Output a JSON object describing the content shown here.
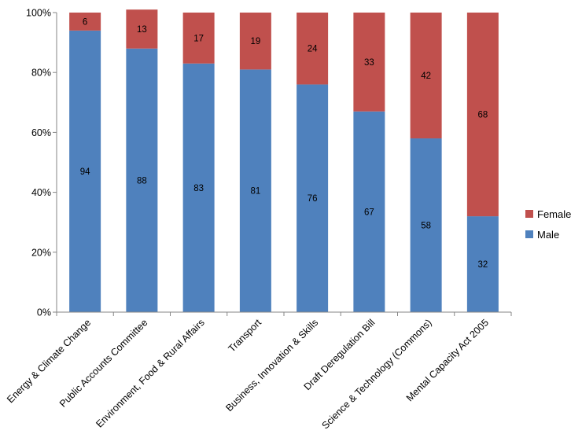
{
  "chart_data": {
    "type": "bar",
    "stacked": true,
    "categories": [
      "Energy & Climate Change",
      "Public Accounts Committee",
      "Environment, Food & Rural Affairs",
      "Transport",
      "Business, Innovation & Skills",
      "Draft Deregulation Bill",
      "Science & Technology (Commons)",
      "Mental Capacity Act 2005"
    ],
    "series": [
      {
        "name": "Male",
        "color": "#4f81bd",
        "values": [
          94,
          88,
          83,
          81,
          76,
          67,
          58,
          32
        ]
      },
      {
        "name": "Female",
        "color": "#c0504d",
        "values": [
          6,
          13,
          17,
          19,
          24,
          33,
          42,
          68
        ]
      }
    ],
    "ylim": [
      0,
      100
    ],
    "yticks": [
      "0%",
      "20%",
      "40%",
      "60%",
      "80%",
      "100%"
    ],
    "grid": false,
    "legend_position": "right"
  }
}
